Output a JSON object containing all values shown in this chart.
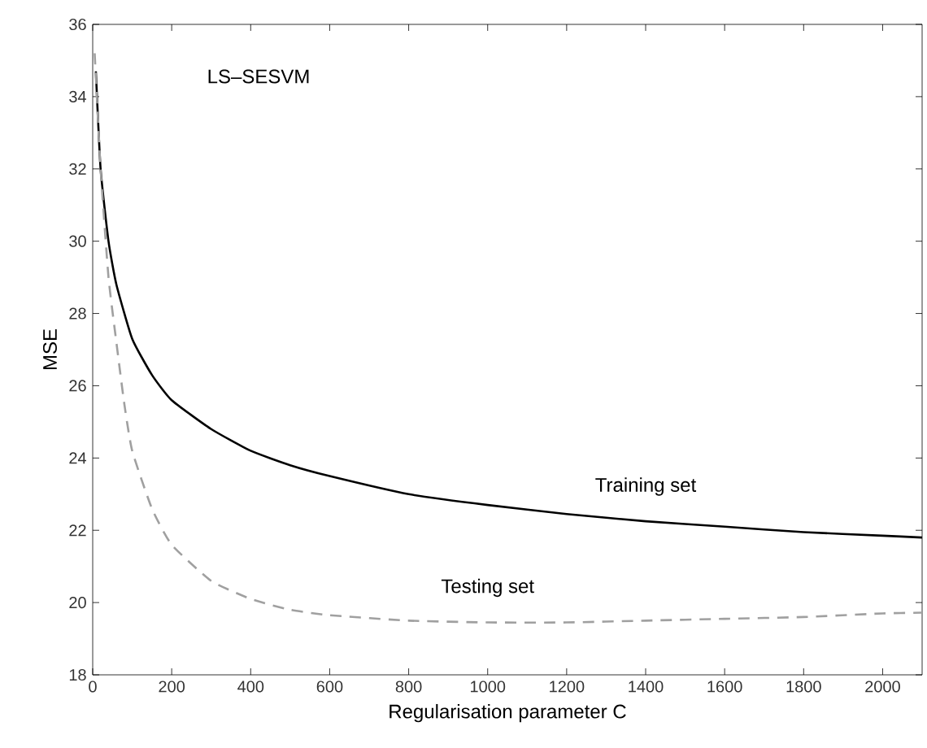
{
  "chart_data": {
    "type": "line",
    "xlabel": "Regularisation parameter C",
    "ylabel": "MSE",
    "annotations": [
      "LS–SESVM"
    ],
    "xlim": [
      0,
      2100
    ],
    "xticks": [
      0,
      200,
      400,
      600,
      800,
      1000,
      1200,
      1400,
      1600,
      1800,
      2000
    ],
    "ylim": [
      18,
      36
    ],
    "yticks": [
      18,
      20,
      22,
      24,
      26,
      28,
      30,
      32,
      34,
      36
    ],
    "grid": false,
    "legend": false,
    "marker": "none",
    "series": [
      {
        "name": "Training set",
        "color": "#000000",
        "line_style": "solid",
        "x": [
          8,
          20,
          40,
          60,
          100,
          150,
          200,
          300,
          400,
          500,
          600,
          800,
          1000,
          1200,
          1400,
          1600,
          1800,
          2000,
          2100
        ],
        "values": [
          34.7,
          32,
          30,
          28.8,
          27.3,
          26.3,
          25.6,
          24.8,
          24.2,
          23.8,
          23.5,
          23.0,
          22.7,
          22.45,
          22.25,
          22.1,
          21.95,
          21.85,
          21.8
        ]
      },
      {
        "name": "Testing set",
        "color": "#a0a0a0",
        "line_style": "dashed",
        "x": [
          5,
          20,
          40,
          60,
          80,
          100,
          150,
          200,
          300,
          400,
          500,
          600,
          800,
          1000,
          1200,
          1400,
          1600,
          1800,
          2000,
          2100
        ],
        "values": [
          35.2,
          32,
          29,
          27.2,
          25.5,
          24.2,
          22.6,
          21.6,
          20.6,
          20.1,
          19.8,
          19.65,
          19.5,
          19.45,
          19.45,
          19.5,
          19.55,
          19.6,
          19.7,
          19.72
        ]
      }
    ]
  }
}
